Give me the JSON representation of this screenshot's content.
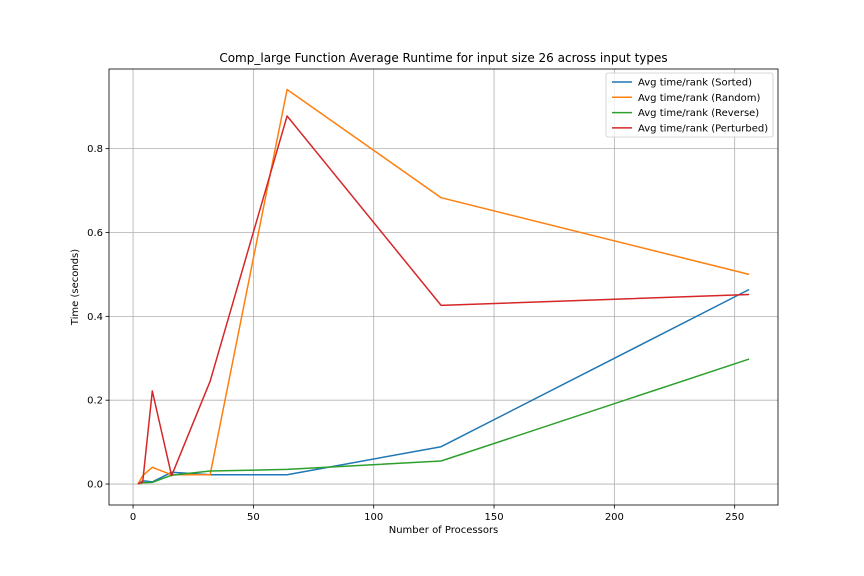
{
  "chart_data": {
    "type": "line",
    "title": "Comp_large Function Average Runtime for input size 26 across input types",
    "xlabel": "Number of Processors",
    "ylabel": "Time (seconds)",
    "xlim": [
      -10,
      268
    ],
    "ylim": [
      -0.05,
      0.99
    ],
    "xticks": [
      0,
      50,
      100,
      150,
      200,
      250
    ],
    "yticks": [
      0.0,
      0.2,
      0.4,
      0.6,
      0.8
    ],
    "grid": true,
    "legend_position": "top-right",
    "x": [
      2,
      4,
      8,
      16,
      32,
      64,
      128,
      256
    ],
    "series": [
      {
        "name": "Avg time/rank (Sorted)",
        "color": "#1f77b4",
        "values": [
          0.0,
          0.008,
          0.005,
          0.028,
          0.022,
          0.022,
          0.089,
          0.464
        ]
      },
      {
        "name": "Avg time/rank (Random)",
        "color": "#ff7f0e",
        "values": [
          0.0,
          0.02,
          0.04,
          0.022,
          0.022,
          0.941,
          0.683,
          0.5
        ]
      },
      {
        "name": "Avg time/rank (Reverse)",
        "color": "#2ca02c",
        "values": [
          0.0,
          0.003,
          0.004,
          0.021,
          0.031,
          0.035,
          0.055,
          0.298
        ]
      },
      {
        "name": "Avg time/rank (Perturbed)",
        "color": "#d62728",
        "values": [
          0.0,
          0.005,
          0.222,
          0.02,
          0.245,
          0.878,
          0.426,
          0.452
        ]
      }
    ]
  }
}
